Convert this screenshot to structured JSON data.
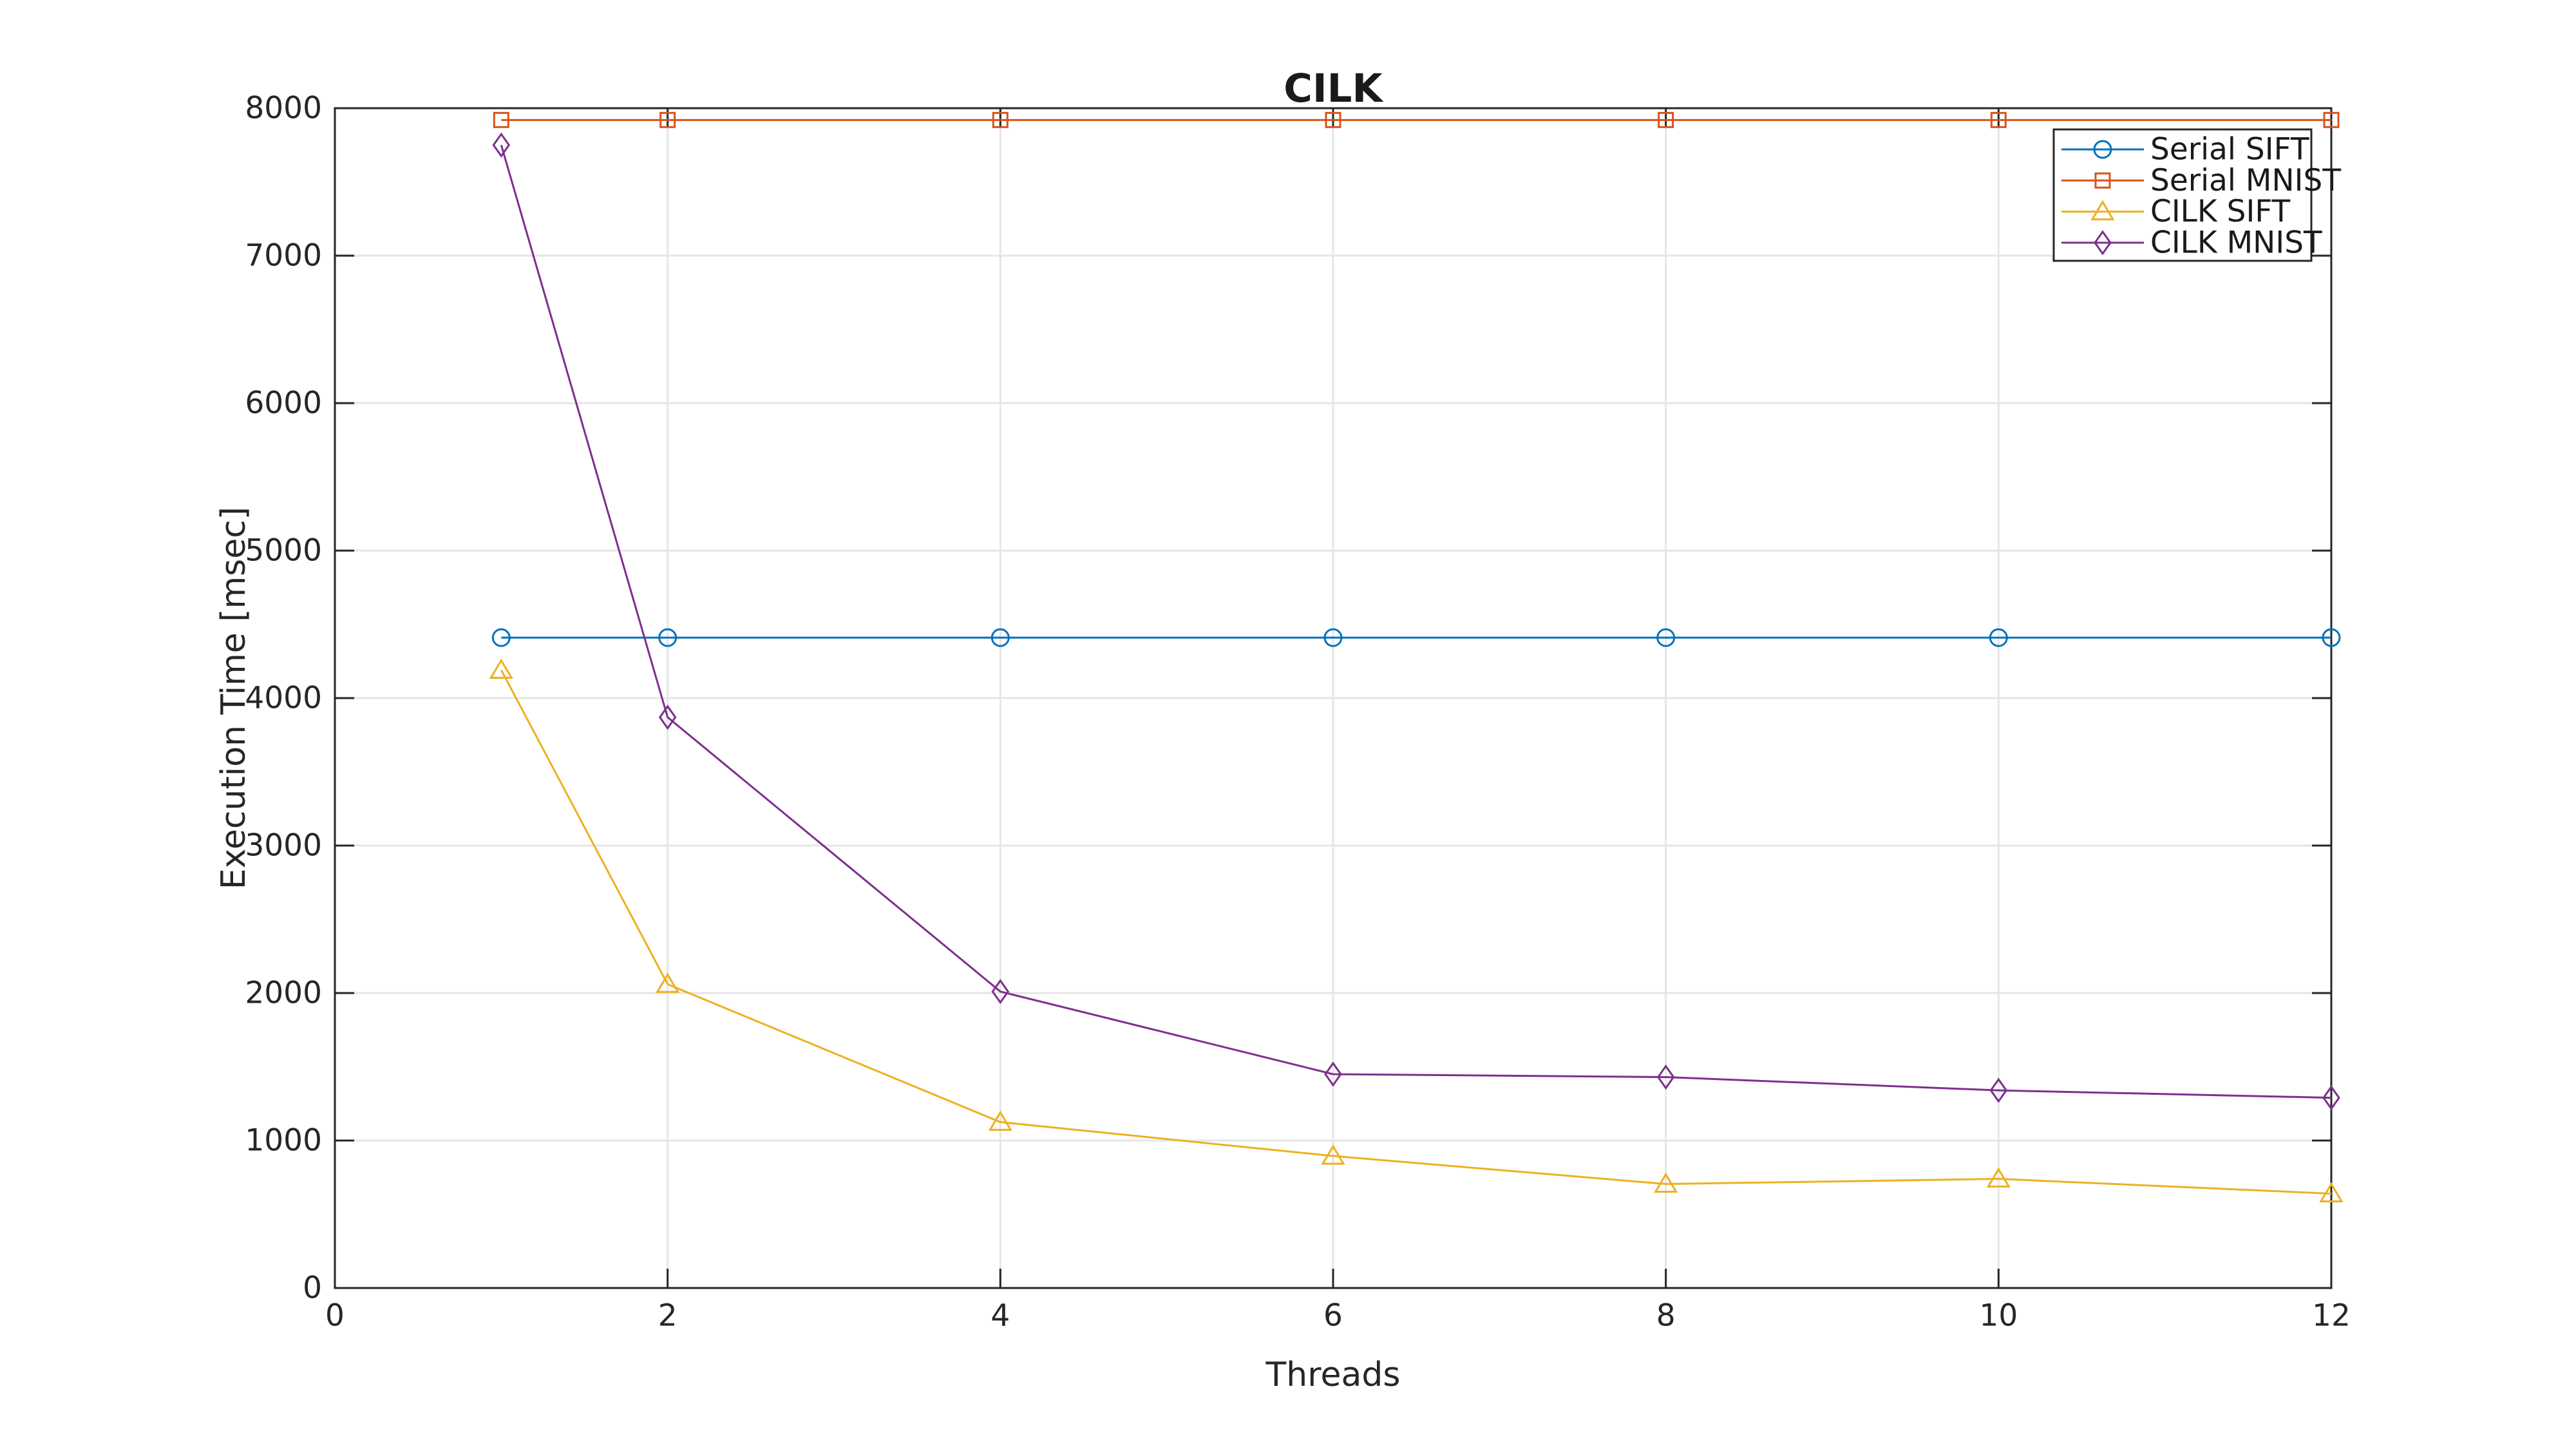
{
  "page": {
    "background": "#ffffff"
  },
  "chart_data": {
    "type": "line",
    "title": "CILK",
    "xlabel": "Threads",
    "ylabel": "Execution Time [msec]",
    "xlim": [
      0,
      12
    ],
    "ylim": [
      0,
      8000
    ],
    "xticks": [
      0,
      2,
      4,
      6,
      8,
      10,
      12
    ],
    "yticks": [
      0,
      1000,
      2000,
      3000,
      4000,
      5000,
      6000,
      7000,
      8000
    ],
    "grid": true,
    "legend_position": "top-right",
    "x": [
      1,
      2,
      4,
      6,
      8,
      10,
      12
    ],
    "series": [
      {
        "name": "Serial SIFT",
        "color": "#0072BD",
        "marker": "circle",
        "values": [
          4410,
          4410,
          4410,
          4410,
          4410,
          4410,
          4410
        ]
      },
      {
        "name": "Serial MNIST",
        "color": "#D95319",
        "marker": "square",
        "values": [
          7920,
          7920,
          7920,
          7920,
          7920,
          7920,
          7920
        ]
      },
      {
        "name": "CILK SIFT",
        "color": "#EDB120",
        "marker": "triangle",
        "values": [
          4190,
          2060,
          1125,
          895,
          705,
          740,
          640
        ]
      },
      {
        "name": "CILK MNIST",
        "color": "#7E2F8E",
        "marker": "diamond",
        "values": [
          7750,
          3870,
          2010,
          1450,
          1430,
          1340,
          1290
        ]
      }
    ],
    "styles": {
      "axis_color": "#262626",
      "grid_color": "#e6e6e6",
      "text_color": "#262626",
      "background": "#ffffff"
    }
  }
}
